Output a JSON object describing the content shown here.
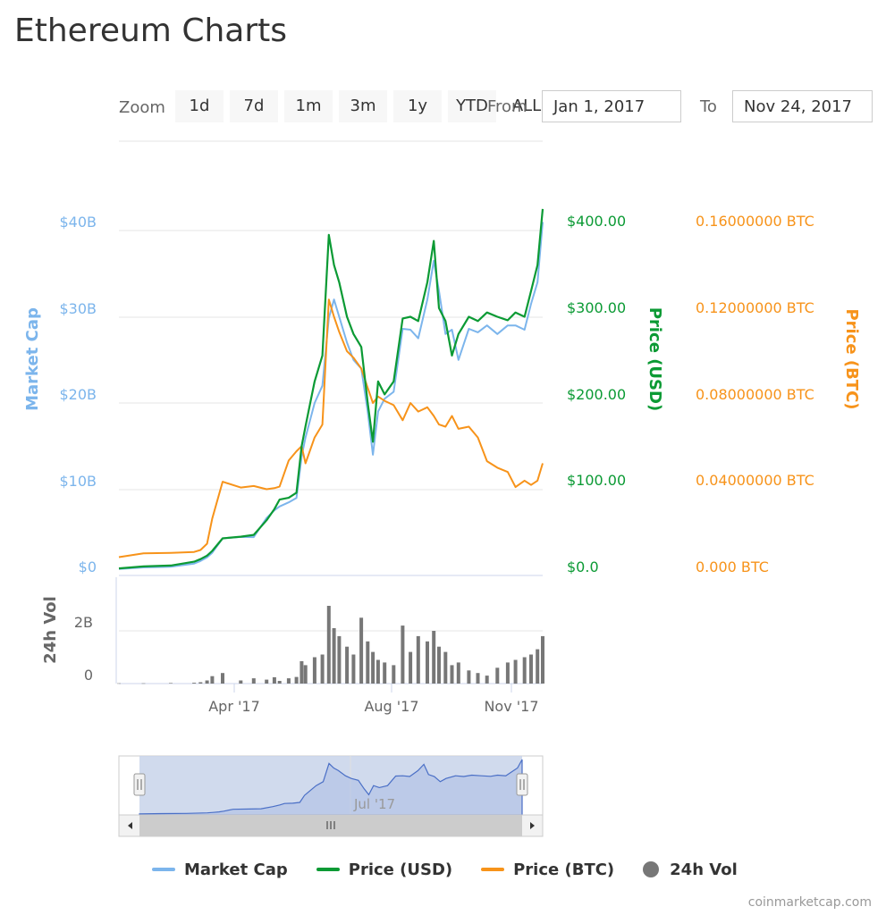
{
  "page": {
    "title": "Ethereum Charts",
    "zoom_label": "Zoom",
    "zoom_buttons": [
      "1d",
      "7d",
      "1m",
      "3m",
      "1y",
      "YTD",
      "ALL"
    ],
    "from_label": "From",
    "from_value": "Jan 1, 2017",
    "to_label": "To",
    "to_value": "Nov 24, 2017",
    "credit": "coinmarketcap.com"
  },
  "colors": {
    "market_cap": "#7cb5ec",
    "price_usd": "#0b9a34",
    "price_btc": "#f7931a",
    "volume": "#777777",
    "navigator_fill": "#c8d3ea",
    "navigator_line": "#4a6fc6"
  },
  "chart_data": {
    "type": "line",
    "title": "Ethereum Charts",
    "x_range": [
      "2017-01-01",
      "2017-11-24"
    ],
    "x_ticks": [
      "Apr '17",
      "Aug '17",
      "Nov '17"
    ],
    "legend_position": "bottom",
    "axes": {
      "market_cap": {
        "label": "Market Cap",
        "ticks": [
          "$0",
          "$10B",
          "$20B",
          "$30B",
          "$40B"
        ],
        "range": [
          0,
          40000000000
        ]
      },
      "price_usd": {
        "label": "Price (USD)",
        "ticks": [
          "$0.0",
          "$100.00",
          "$200.00",
          "$300.00",
          "$400.00"
        ],
        "range": [
          0,
          400
        ]
      },
      "price_btc": {
        "label": "Price (BTC)",
        "ticks": [
          "0.000 BTC",
          "0.04000000 BTC",
          "0.08000000 BTC",
          "0.12000000 BTC",
          "0.16000000 BTC"
        ],
        "range": [
          0,
          0.16
        ]
      },
      "volume": {
        "label": "24h Vol",
        "ticks": [
          "0",
          "2B"
        ],
        "range": [
          0,
          2000000000
        ]
      }
    },
    "x": [
      "2017-01-01",
      "2017-01-20",
      "2017-02-10",
      "2017-02-28",
      "2017-03-05",
      "2017-03-10",
      "2017-03-14",
      "2017-03-22",
      "2017-04-05",
      "2017-04-15",
      "2017-04-25",
      "2017-05-01",
      "2017-05-05",
      "2017-05-12",
      "2017-05-18",
      "2017-05-22",
      "2017-05-25",
      "2017-06-01",
      "2017-06-07",
      "2017-06-12",
      "2017-06-16",
      "2017-06-20",
      "2017-06-26",
      "2017-07-01",
      "2017-07-07",
      "2017-07-12",
      "2017-07-16",
      "2017-07-20",
      "2017-07-25",
      "2017-08-01",
      "2017-08-08",
      "2017-08-14",
      "2017-08-20",
      "2017-08-27",
      "2017-09-01",
      "2017-09-05",
      "2017-09-10",
      "2017-09-15",
      "2017-09-20",
      "2017-09-28",
      "2017-10-05",
      "2017-10-12",
      "2017-10-20",
      "2017-10-28",
      "2017-11-03",
      "2017-11-10",
      "2017-11-15",
      "2017-11-20",
      "2017-11-24"
    ],
    "series": [
      {
        "name": "Market Cap",
        "values": [
          0.75,
          0.93,
          1.02,
          1.38,
          1.68,
          2.1,
          2.63,
          4.3,
          4.47,
          4.45,
          6.66,
          7.55,
          8.0,
          8.48,
          8.98,
          13.8,
          16.0,
          20.0,
          22.0,
          29.85,
          32.0,
          30.0,
          27.0,
          25.0,
          24.0,
          19.0,
          14.0,
          19.0,
          20.5,
          21.3,
          28.6,
          28.5,
          27.5,
          32.0,
          36.5,
          33.0,
          28.0,
          28.5,
          25.0,
          28.6,
          28.2,
          29.0,
          28.0,
          29.0,
          29.0,
          28.5,
          31.5,
          34.0,
          41.0
        ],
        "unit": "USD"
      },
      {
        "name": "Price (USD)",
        "values": [
          8.2,
          10.5,
          11.5,
          16.0,
          19.0,
          23.0,
          28.5,
          43.0,
          45.0,
          47.0,
          64.0,
          77.0,
          88.0,
          90.0,
          96.0,
          150.0,
          173.0,
          225.0,
          255.0,
          395.0,
          360.0,
          340.0,
          300.0,
          280.0,
          265.0,
          200.0,
          155.0,
          225.0,
          210.0,
          225.0,
          298.0,
          300.0,
          295.0,
          340.0,
          388.0,
          310.0,
          295.0,
          255.0,
          280.0,
          300.0,
          295.0,
          305.0,
          300.0,
          296.0,
          305.0,
          300.0,
          330.0,
          360.0,
          425.0
        ],
        "unit": "USD"
      },
      {
        "name": "Price (BTC)",
        "values": [
          0.0085,
          0.0103,
          0.0105,
          0.0109,
          0.0118,
          0.0147,
          0.0264,
          0.0435,
          0.0408,
          0.0415,
          0.04,
          0.0405,
          0.0412,
          0.0533,
          0.0576,
          0.06,
          0.052,
          0.064,
          0.07,
          0.128,
          0.12,
          0.113,
          0.104,
          0.101,
          0.096,
          0.087,
          0.08,
          0.083,
          0.081,
          0.079,
          0.072,
          0.08,
          0.076,
          0.078,
          0.074,
          0.07,
          0.069,
          0.074,
          0.068,
          0.069,
          0.064,
          0.053,
          0.05,
          0.048,
          0.041,
          0.044,
          0.042,
          0.044,
          0.052
        ],
        "unit": "BTC"
      }
    ],
    "volume": {
      "name": "24h Vol",
      "values": [
        0.01,
        0.01,
        0.02,
        0.03,
        0.05,
        0.12,
        0.28,
        0.4,
        0.12,
        0.2,
        0.15,
        0.24,
        0.1,
        0.2,
        0.25,
        0.85,
        0.7,
        1.0,
        1.1,
        2.95,
        2.1,
        1.8,
        1.4,
        1.1,
        2.5,
        1.6,
        1.2,
        0.9,
        0.8,
        0.7,
        2.2,
        1.2,
        1.8,
        1.6,
        2.0,
        1.4,
        1.2,
        0.7,
        0.8,
        0.5,
        0.4,
        0.3,
        0.6,
        0.8,
        0.9,
        1.0,
        1.1,
        1.3,
        1.8
      ],
      "unit": "billion USD"
    },
    "navigator": {
      "range": [
        "2017-01-01",
        "2017-11-24"
      ],
      "tick": "Jul '17"
    }
  }
}
